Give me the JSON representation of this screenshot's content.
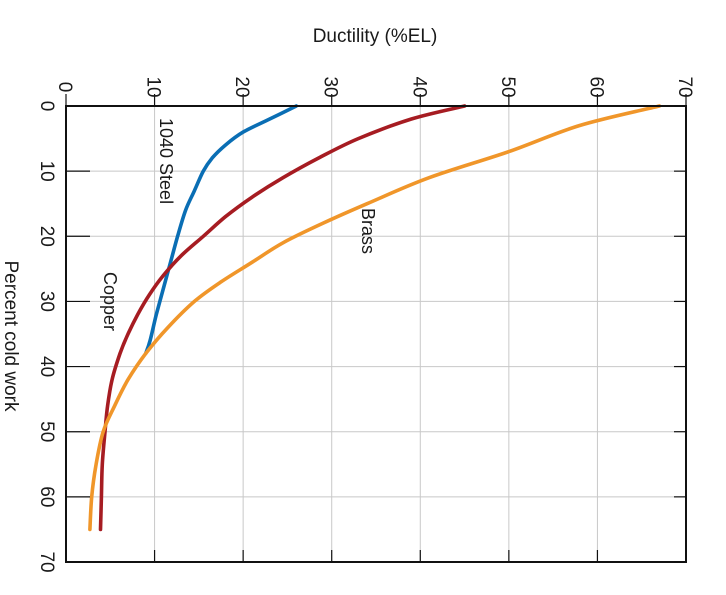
{
  "chart_data": {
    "type": "line",
    "title": "",
    "orientation": "rotated 90 degrees clockwise",
    "top_axis_label": "Ductility (%EL)",
    "left_axis_label": "Percent cold work",
    "ductility_range": [
      0,
      70
    ],
    "cold_work_range": [
      0,
      70
    ],
    "ductility_ticks": [
      "0",
      "10",
      "20",
      "30",
      "40",
      "50",
      "60",
      "70"
    ],
    "cold_work_ticks": [
      "0",
      "10",
      "20",
      "30",
      "40",
      "50",
      "60",
      "70"
    ],
    "grid": true,
    "series": [
      {
        "name": "1040 Steel",
        "color": "#0a6eb4",
        "cold_work": [
          0,
          2,
          4,
          6,
          8,
          10,
          13,
          16,
          20,
          24,
          28,
          32,
          36,
          38
        ],
        "ductility": [
          26,
          23,
          20,
          18,
          16.5,
          15.5,
          14.5,
          13.5,
          12.6,
          11.8,
          11,
          10.2,
          9.5,
          9
        ]
      },
      {
        "name": "Copper",
        "color": "#a61c22",
        "cold_work": [
          0,
          2,
          5,
          8,
          11,
          14,
          17,
          20,
          23,
          26,
          29,
          32,
          35,
          38,
          42,
          46,
          50,
          55,
          60,
          65
        ],
        "ductility": [
          45,
          39,
          33,
          28.5,
          24.5,
          21,
          18,
          15.5,
          13,
          11,
          9.4,
          8.1,
          7,
          6.1,
          5.2,
          4.7,
          4.4,
          4.1,
          4,
          3.9
        ]
      },
      {
        "name": "Brass",
        "color": "#f0962a",
        "cold_work": [
          0,
          3,
          7,
          11,
          15,
          18,
          21,
          24,
          27,
          30,
          34,
          38,
          42,
          46,
          50,
          55,
          60,
          65
        ],
        "ductility": [
          67,
          58,
          50,
          41,
          34,
          29,
          24.5,
          21,
          17.5,
          14.5,
          11.5,
          9,
          7,
          5.5,
          4.2,
          3.4,
          2.9,
          2.7
        ]
      }
    ],
    "annotations": [
      "1040 Steel",
      "Copper",
      "Brass"
    ]
  }
}
